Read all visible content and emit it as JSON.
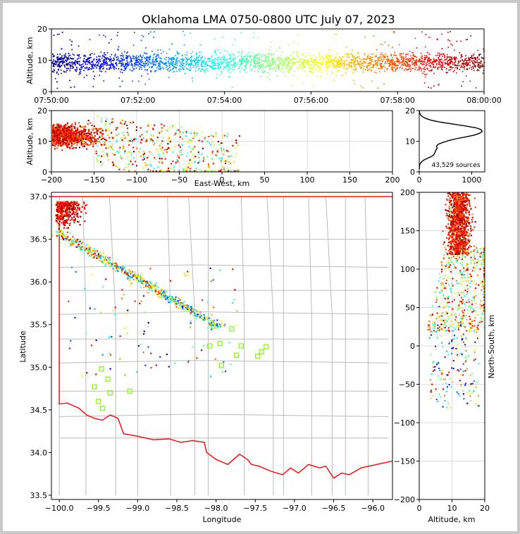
{
  "title": "Oklahoma LMA 0750-0800 UTC July 07, 2023",
  "colors": {
    "state_border": "#ff0000",
    "county_lines": "#bbbbbb",
    "station_marker": "#7cfc00",
    "grid": "#dddddd"
  },
  "chart_data": [
    {
      "id": "time-height",
      "type": "scatter",
      "xlabel": "",
      "ylabel": "Altitude, km",
      "xticks": [
        "07:50:00",
        "07:52:00",
        "07:54:00",
        "07:56:00",
        "07:58:00",
        "08:00:00"
      ],
      "xlim": [
        0,
        600
      ],
      "ylim": [
        0,
        20
      ],
      "yticks": [
        0,
        10,
        20
      ],
      "colormap": "jet (time)",
      "altitude_range_km": [
        1,
        20
      ],
      "altitude_core_km": [
        5,
        14
      ]
    },
    {
      "id": "ew-height",
      "type": "scatter",
      "xlabel": "East-West, km",
      "ylabel": "Altitude, km",
      "xlim": [
        -200,
        200
      ],
      "xticks": [
        -200,
        -150,
        -100,
        -50,
        0,
        50,
        100,
        150,
        200
      ],
      "ylim": [
        0,
        20
      ],
      "yticks": [
        0,
        10,
        20
      ],
      "grid": true
    },
    {
      "id": "altitude-histogram",
      "type": "line",
      "xlim": [
        0,
        1250
      ],
      "xticks": [
        0,
        1000
      ],
      "ylim": [
        0,
        20
      ],
      "yticks": [
        0,
        10,
        20
      ],
      "annotation": "43,529 sources",
      "x": [
        0,
        5,
        15,
        40,
        80,
        150,
        230,
        280,
        300,
        320,
        340,
        330,
        360,
        450,
        560,
        700,
        880,
        1050,
        1150,
        1200,
        1180,
        1080,
        880,
        640,
        420,
        240,
        130,
        60,
        25,
        8,
        2
      ],
      "y": [
        1.0,
        2.0,
        2.6,
        3.2,
        3.8,
        4.4,
        5.0,
        5.6,
        6.4,
        7.2,
        7.8,
        8.4,
        9.0,
        9.6,
        10.2,
        10.8,
        11.4,
        12.0,
        12.6,
        13.2,
        13.8,
        14.4,
        15.0,
        15.6,
        16.2,
        16.8,
        17.4,
        18.0,
        18.6,
        19.2,
        19.8
      ]
    },
    {
      "id": "plan-view",
      "type": "scatter",
      "xlabel": "Longitude",
      "ylabel": "Latitude",
      "xlim": [
        -100.1,
        -95.75
      ],
      "xticks": [
        -100.0,
        -99.5,
        -99.0,
        -98.5,
        -98.0,
        -97.5,
        -97.0,
        -96.5,
        -96.0
      ],
      "xtick_labels": [
        "−100.0",
        "−99.5",
        "−99.0",
        "−98.5",
        "−98.0",
        "−97.5",
        "−97.0",
        "−96.5",
        "−96.0"
      ],
      "ylim": [
        33.45,
        37.05
      ],
      "yticks": [
        33.5,
        34.0,
        34.5,
        35.0,
        35.5,
        36.0,
        36.5,
        37.0
      ],
      "ytick_labels": [
        "33.5",
        "34.0",
        "34.5",
        "35.0",
        "35.5",
        "36.0",
        "36.5",
        "37.0"
      ],
      "stations": [
        [
          -98.04,
          35.48
        ],
        [
          -97.8,
          35.45
        ],
        [
          -97.95,
          35.28
        ],
        [
          -97.68,
          35.25
        ],
        [
          -98.08,
          35.25
        ],
        [
          -97.36,
          35.24
        ],
        [
          -97.42,
          35.18
        ],
        [
          -97.74,
          35.14
        ],
        [
          -97.47,
          35.13
        ],
        [
          -97.93,
          35.02
        ],
        [
          -99.46,
          34.98
        ],
        [
          -99.38,
          34.86
        ],
        [
          -99.55,
          34.77
        ],
        [
          -99.35,
          34.7
        ],
        [
          -99.1,
          34.72
        ],
        [
          -99.5,
          34.6
        ],
        [
          -99.45,
          34.52
        ]
      ]
    },
    {
      "id": "ns-height",
      "type": "scatter",
      "xlabel": "Altitude, km",
      "ylabel": "North-South, km",
      "xlim": [
        0,
        20
      ],
      "xticks": [
        0,
        10,
        20
      ],
      "ylim": [
        -200,
        200
      ],
      "yticks": [
        -200,
        -150,
        -100,
        -50,
        0,
        50,
        100,
        150,
        200
      ],
      "ytick_labels": [
        "−200",
        "−150",
        "−100",
        "−50",
        "0",
        "50",
        "100",
        "150",
        "200"
      ]
    }
  ]
}
